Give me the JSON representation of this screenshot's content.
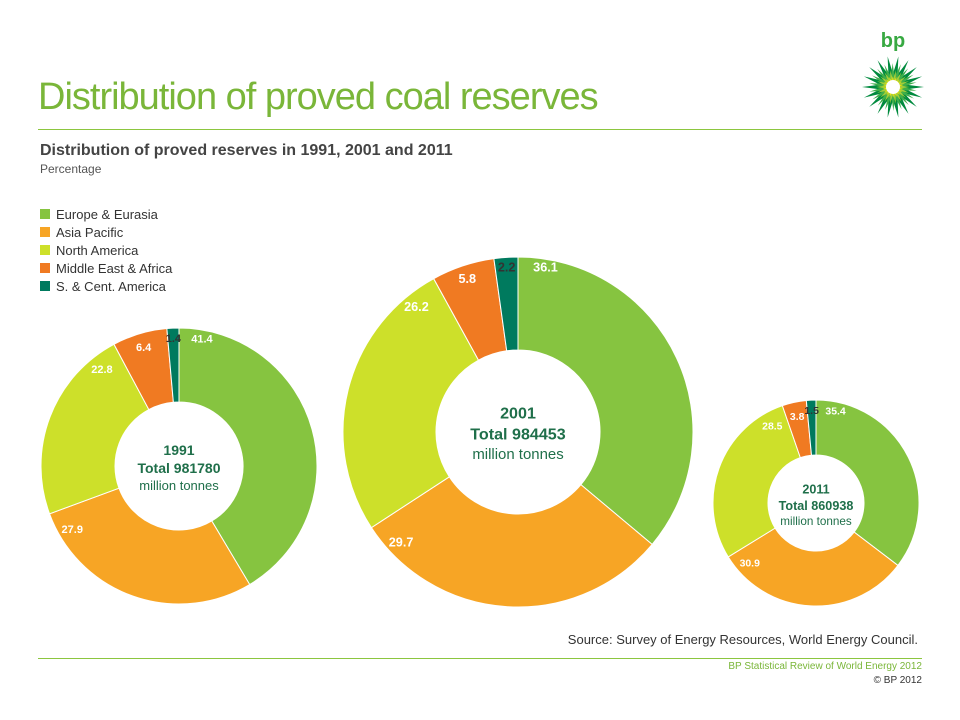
{
  "header": {
    "title": "Distribution of proved coal reserves",
    "logo_text": "bp"
  },
  "chart_data": {
    "type": "pie",
    "title": "Distribution of proved reserves in 1991, 2001 and 2011",
    "subtitle": "Percentage",
    "categories": [
      "Europe & Eurasia",
      "Asia Pacific",
      "North America",
      "Middle East & Africa",
      "S. & Cent. America"
    ],
    "colors": [
      "#86c440",
      "#f7a525",
      "#cde02a",
      "#f07a22",
      "#007a5e"
    ],
    "donuts": [
      {
        "year": "1991",
        "total_label": "Total 981780",
        "unit": "million tonnes",
        "values": [
          41.4,
          27.9,
          22.8,
          6.4,
          1.4
        ]
      },
      {
        "year": "2001",
        "total_label": "Total 984453",
        "unit": "million tonnes",
        "values": [
          36.1,
          29.7,
          26.2,
          5.8,
          2.2
        ]
      },
      {
        "year": "2011",
        "total_label": "Total 860938",
        "unit": "million tonnes",
        "values": [
          35.4,
          30.9,
          28.5,
          3.8,
          1.5
        ]
      }
    ]
  },
  "source": "Source: Survey of Energy Resources, World Energy Council.",
  "footer": {
    "review": "BP Statistical Review of World Energy 2012",
    "copyright": "© BP 2012"
  }
}
